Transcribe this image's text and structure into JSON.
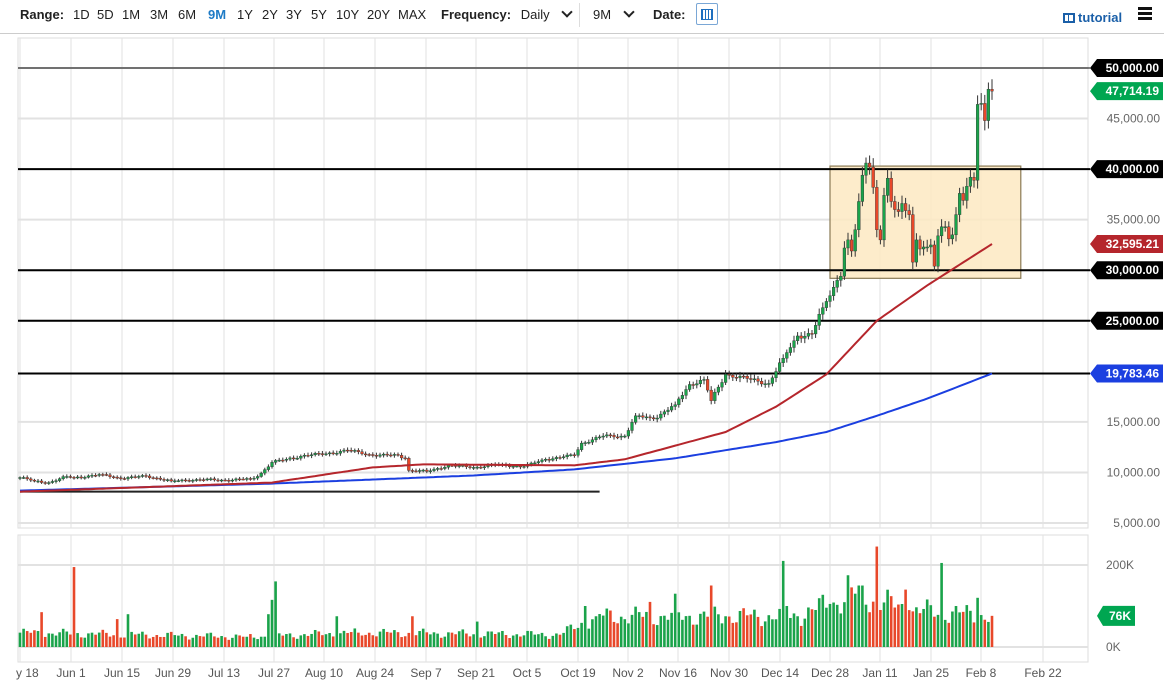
{
  "toolbar": {
    "range_label": "Range:",
    "ranges": [
      "1D",
      "5D",
      "1M",
      "3M",
      "6M",
      "9M",
      "1Y",
      "2Y",
      "3Y",
      "5Y",
      "10Y",
      "20Y",
      "MAX"
    ],
    "active_range": "9M",
    "frequency_label": "Frequency:",
    "frequency_value": "Daily",
    "period_value": "9M",
    "date_label": "Date:",
    "calendar_icon": "calendar-icon",
    "tutorial_label": "tutorial",
    "tutorial_icon": "film-icon",
    "menu_icon": "hamburger-menu-icon"
  },
  "chart_data": {
    "type": "candlestick",
    "price_axis": {
      "ylim": [
        5000,
        50000
      ],
      "ticks": [
        "50,000.00",
        "45,000.00",
        "40,000.00",
        "35,000.00",
        "30,000.00",
        "25,000.00",
        "15,000.00",
        "10,000.00",
        "5,000.00"
      ],
      "tick_values": [
        50000,
        45000,
        40000,
        35000,
        30000,
        25000,
        15000,
        10000,
        5000
      ]
    },
    "price_tags": [
      {
        "text": "50,000.00",
        "value": 50000,
        "color": "#000000"
      },
      {
        "text": "47,714.19",
        "value": 47714.19,
        "color": "#00a651"
      },
      {
        "text": "40,000.00",
        "value": 40000,
        "color": "#000000"
      },
      {
        "text": "32,595.21",
        "value": 32595.21,
        "color": "#b5262c"
      },
      {
        "text": "30,000.00",
        "value": 30000,
        "color": "#000000"
      },
      {
        "text": "25,000.00",
        "value": 25000,
        "color": "#000000"
      },
      {
        "text": "19,783.46",
        "value": 19783.46,
        "color": "#1b3fe0"
      }
    ],
    "horizontal_lines": [
      50000,
      40000,
      30000,
      25000,
      19783.46
    ],
    "support_line": {
      "value": 8100,
      "from": "2020-05-18",
      "to": "2020-10-26"
    },
    "range_box": {
      "from": "2020-12-29",
      "to": "2021-02-20",
      "low": 29200,
      "high": 40300,
      "color": "#fde9c2"
    },
    "x_axis": {
      "start_date": "2020-05-18",
      "tick_labels": [
        "y 18",
        "Jun 1",
        "Jun 15",
        "Jun 29",
        "Jul 13",
        "Jul 27",
        "Aug 10",
        "Aug 24",
        "Sep 7",
        "Sep 21",
        "Oct 5",
        "Oct 19",
        "Nov 2",
        "Nov 16",
        "Nov 30",
        "Dec 14",
        "Dec 28",
        "Jan 11",
        "Jan 25",
        "Feb 8",
        "Feb 22"
      ]
    },
    "close_keyframes": [
      [
        "2020-05-18",
        9500
      ],
      [
        "2020-05-22",
        9150
      ],
      [
        "2020-05-26",
        9000
      ],
      [
        "2020-05-31",
        9600
      ],
      [
        "2020-06-02",
        9500
      ],
      [
        "2020-06-10",
        9800
      ],
      [
        "2020-06-15",
        9400
      ],
      [
        "2020-06-22",
        9650
      ],
      [
        "2020-06-29",
        9150
      ],
      [
        "2020-07-06",
        9300
      ],
      [
        "2020-07-13",
        9250
      ],
      [
        "2020-07-21",
        9350
      ],
      [
        "2020-07-23",
        9600
      ],
      [
        "2020-07-27",
        11000
      ],
      [
        "2020-07-31",
        11300
      ],
      [
        "2020-08-05",
        11700
      ],
      [
        "2020-08-10",
        11800
      ],
      [
        "2020-08-17",
        12200
      ],
      [
        "2020-08-24",
        11700
      ],
      [
        "2020-08-31",
        11700
      ],
      [
        "2020-09-02",
        11400
      ],
      [
        "2020-09-03",
        10200
      ],
      [
        "2020-09-08",
        10100
      ],
      [
        "2020-09-14",
        10700
      ],
      [
        "2020-09-21",
        10500
      ],
      [
        "2020-09-27",
        10750
      ],
      [
        "2020-10-05",
        10600
      ],
      [
        "2020-10-11",
        11300
      ],
      [
        "2020-10-19",
        11700
      ],
      [
        "2020-10-21",
        12900
      ],
      [
        "2020-10-27",
        13600
      ],
      [
        "2020-11-02",
        13600
      ],
      [
        "2020-11-05",
        15600
      ],
      [
        "2020-11-10",
        15300
      ],
      [
        "2020-11-16",
        16700
      ],
      [
        "2020-11-20",
        18700
      ],
      [
        "2020-11-24",
        19200
      ],
      [
        "2020-11-26",
        17100
      ],
      [
        "2020-11-30",
        19700
      ],
      [
        "2020-12-07",
        19200
      ],
      [
        "2020-12-12",
        18800
      ],
      [
        "2020-12-16",
        21300
      ],
      [
        "2020-12-20",
        23500
      ],
      [
        "2020-12-24",
        23700
      ],
      [
        "2020-12-27",
        26300
      ],
      [
        "2020-12-31",
        29000
      ],
      [
        "2021-01-01",
        29400
      ],
      [
        "2021-01-02",
        32200
      ],
      [
        "2021-01-03",
        33000
      ],
      [
        "2021-01-04",
        31900
      ],
      [
        "2021-01-05",
        34000
      ],
      [
        "2021-01-06",
        36800
      ],
      [
        "2021-01-07",
        39400
      ],
      [
        "2021-01-08",
        40600
      ],
      [
        "2021-01-09",
        40200
      ],
      [
        "2021-01-10",
        38200
      ],
      [
        "2021-01-11",
        34000
      ],
      [
        "2021-01-12",
        33000
      ],
      [
        "2021-01-13",
        37400
      ],
      [
        "2021-01-14",
        39100
      ],
      [
        "2021-01-15",
        36800
      ],
      [
        "2021-01-16",
        36000
      ],
      [
        "2021-01-17",
        35800
      ],
      [
        "2021-01-18",
        36600
      ],
      [
        "2021-01-19",
        35900
      ],
      [
        "2021-01-20",
        35500
      ],
      [
        "2021-01-21",
        30800
      ],
      [
        "2021-01-22",
        33000
      ],
      [
        "2021-01-23",
        32100
      ],
      [
        "2021-01-24",
        32300
      ],
      [
        "2021-01-25",
        32300
      ],
      [
        "2021-01-26",
        32500
      ],
      [
        "2021-01-27",
        30400
      ],
      [
        "2021-01-28",
        33400
      ],
      [
        "2021-01-29",
        34300
      ],
      [
        "2021-01-30",
        34300
      ],
      [
        "2021-01-31",
        33100
      ],
      [
        "2021-02-01",
        33500
      ],
      [
        "2021-02-02",
        35500
      ],
      [
        "2021-02-03",
        37600
      ],
      [
        "2021-02-04",
        36900
      ],
      [
        "2021-02-05",
        38300
      ],
      [
        "2021-02-06",
        39200
      ],
      [
        "2021-02-07",
        38900
      ],
      [
        "2021-02-08",
        46400
      ],
      [
        "2021-02-09",
        46500
      ],
      [
        "2021-02-10",
        44800
      ],
      [
        "2021-02-11",
        47900
      ],
      [
        "2021-02-12",
        47714.19
      ]
    ],
    "ma_red": {
      "color": "#b5262c",
      "last": 32595.21,
      "points": [
        [
          "2020-05-18",
          8100
        ],
        [
          "2020-07-27",
          9000
        ],
        [
          "2020-08-24",
          10500
        ],
        [
          "2020-09-07",
          10800
        ],
        [
          "2020-10-19",
          10700
        ],
        [
          "2020-11-02",
          11300
        ],
        [
          "2020-11-30",
          14000
        ],
        [
          "2020-12-14",
          16500
        ],
        [
          "2020-12-28",
          19700
        ],
        [
          "2021-01-11",
          25000
        ],
        [
          "2021-01-25",
          28500
        ],
        [
          "2021-02-12",
          32595.21
        ]
      ]
    },
    "ma_blue": {
      "color": "#1b3fe0",
      "last": 19783.46,
      "points": [
        [
          "2020-05-18",
          8200
        ],
        [
          "2020-07-27",
          8900
        ],
        [
          "2020-09-21",
          9700
        ],
        [
          "2020-10-19",
          10300
        ],
        [
          "2020-11-16",
          11400
        ],
        [
          "2020-12-14",
          13000
        ],
        [
          "2020-12-28",
          14000
        ],
        [
          "2021-01-11",
          15600
        ],
        [
          "2021-01-25",
          17300
        ],
        [
          "2021-02-12",
          19783.46
        ]
      ]
    },
    "volume_axis": {
      "ticks": [
        "200K",
        "0K"
      ],
      "tick_values": [
        200000,
        0
      ],
      "last_tag": "76K",
      "last_value": 76000
    },
    "volume_keyframes_k": [
      [
        "2020-05-18",
        35
      ],
      [
        "2020-07-20",
        25
      ],
      [
        "2020-08-20",
        35
      ],
      [
        "2020-10-15",
        30
      ],
      [
        "2020-10-25",
        75
      ],
      [
        "2020-11-30",
        75
      ],
      [
        "2020-12-20",
        75
      ],
      [
        "2021-01-05",
        130
      ],
      [
        "2021-01-20",
        90
      ],
      [
        "2021-02-12",
        76
      ]
    ],
    "volume_spikes_k": [
      [
        "2020-05-24",
        85
      ],
      [
        "2020-06-02",
        195
      ],
      [
        "2020-06-14",
        68
      ],
      [
        "2020-06-17",
        80
      ],
      [
        "2020-07-26",
        80
      ],
      [
        "2020-07-27",
        115
      ],
      [
        "2020-07-28",
        160
      ],
      [
        "2020-08-14",
        75
      ],
      [
        "2020-09-04",
        75
      ],
      [
        "2020-09-22",
        62
      ],
      [
        "2020-10-22",
        100
      ],
      [
        "2020-11-09",
        110
      ],
      [
        "2020-11-16",
        130
      ],
      [
        "2020-11-26",
        150
      ],
      [
        "2020-12-16",
        210
      ],
      [
        "2020-12-17",
        100
      ],
      [
        "2020-12-29",
        105
      ],
      [
        "2021-01-03",
        175
      ],
      [
        "2021-01-11",
        245
      ],
      [
        "2021-01-19",
        140
      ],
      [
        "2021-01-29",
        205
      ],
      [
        "2021-02-08",
        120
      ]
    ]
  }
}
